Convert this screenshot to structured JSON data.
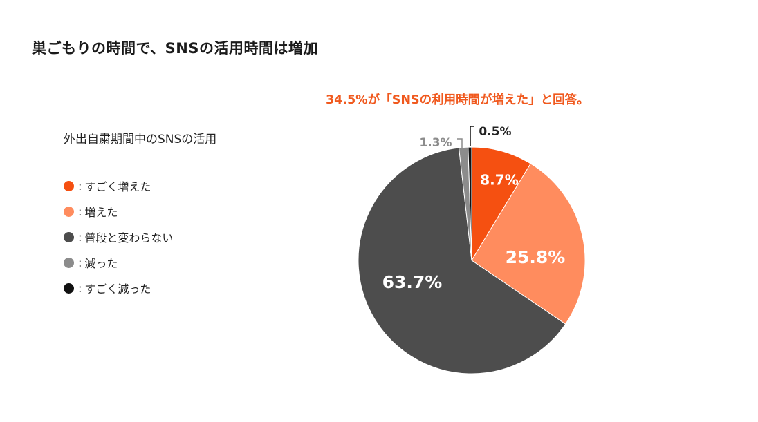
{
  "title": "巣ごもりの時間で、SNSの活用時間は増加",
  "headline": "34.5%が「SNSの利用時間が増えた」と回答。",
  "chart_data": {
    "type": "pie",
    "title": "外出自粛期間中のSNSの活用",
    "legend_position": "left",
    "slices": [
      {
        "label": "すごく増えた",
        "value": 8.7,
        "display": "8.7%",
        "color": "#f55011",
        "label_color": "#ffffff"
      },
      {
        "label": "増えた",
        "value": 25.8,
        "display": "25.8%",
        "color": "#ff8c5e",
        "label_color": "#ffffff"
      },
      {
        "label": "普段と変わらない",
        "value": 63.7,
        "display": "63.7%",
        "color": "#4d4d4d",
        "label_color": "#ffffff"
      },
      {
        "label": "減った",
        "value": 1.3,
        "display": "1.3%",
        "color": "#8c8c8c",
        "label_color": "#8c8c8c"
      },
      {
        "label": "すごく減った",
        "value": 0.5,
        "display": "0.5%",
        "color": "#111111",
        "label_color": "#222222"
      }
    ]
  },
  "legend": {
    "separator": ":"
  }
}
